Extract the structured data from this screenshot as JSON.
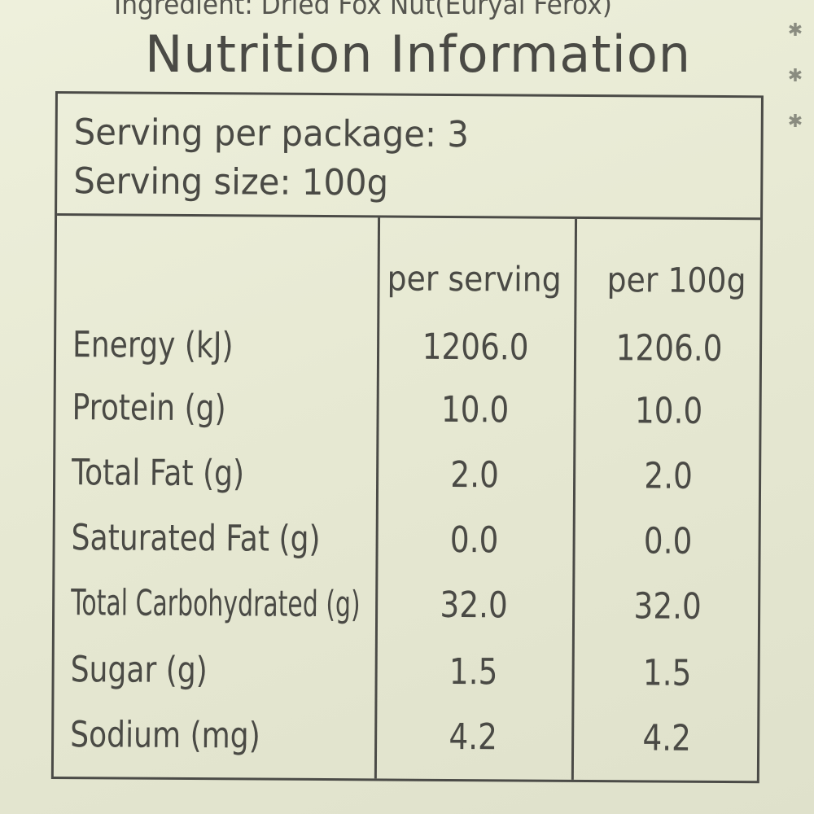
{
  "ingredient": "Ingredient: Dried Fox Nut(Euryal Ferox)",
  "title": "Nutrition Information",
  "serving": {
    "per_package": "Serving per package: 3",
    "size": "Serving size: 100g"
  },
  "columns": {
    "per_serving": "per serving",
    "per_100g": "per 100g"
  },
  "rows": [
    {
      "name": "Energy (kJ)",
      "per_serving": "1206.0",
      "per_100g": "1206.0"
    },
    {
      "name": "Protein (g)",
      "per_serving": "10.0",
      "per_100g": "10.0"
    },
    {
      "name": "Total Fat (g)",
      "per_serving": "2.0",
      "per_100g": "2.0"
    },
    {
      "name": "Saturated Fat (g)",
      "per_serving": "0.0",
      "per_100g": "0.0"
    },
    {
      "name": "Total Carbohydrated (g)",
      "per_serving": "32.0",
      "per_100g": "32.0"
    },
    {
      "name": "Sugar (g)",
      "per_serving": "1.5",
      "per_100g": "1.5"
    },
    {
      "name": "Sodium (mg)",
      "per_serving": "4.2",
      "per_100g": "4.2"
    }
  ],
  "colors": {
    "background": "#e9ebd6",
    "ink": "#4a4a45"
  }
}
